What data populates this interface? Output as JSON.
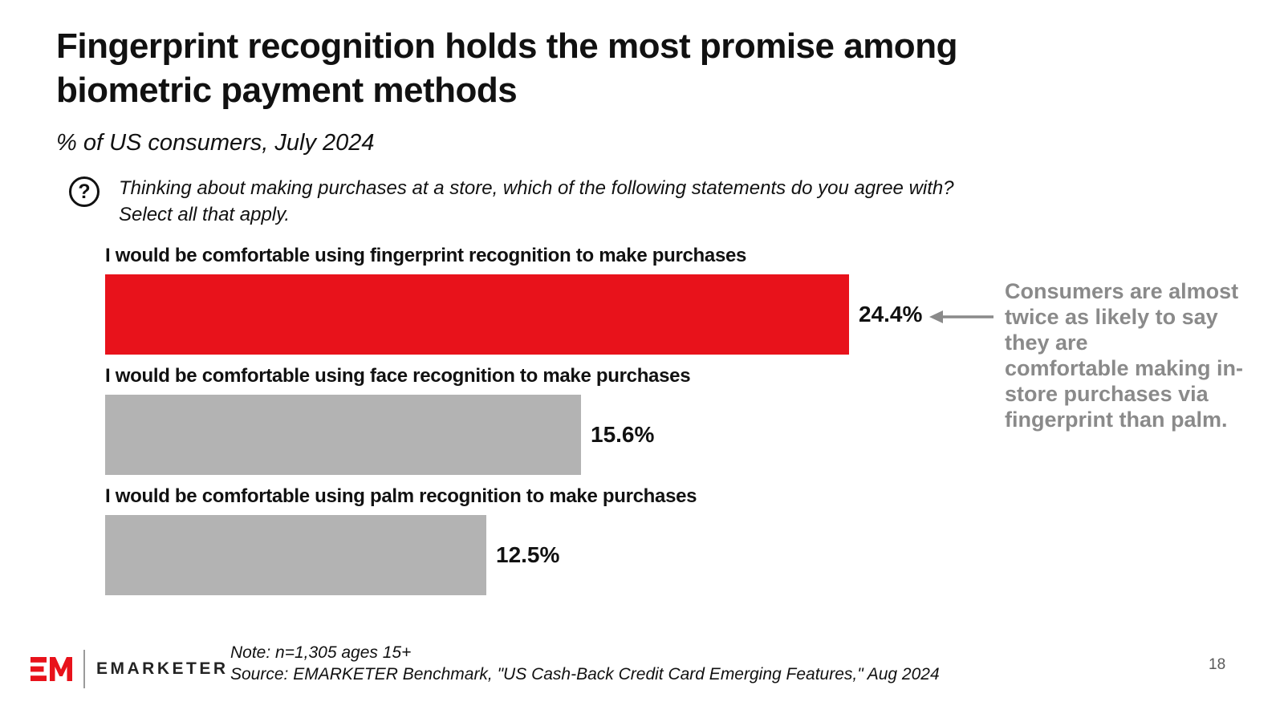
{
  "header": {
    "title": "Fingerprint recognition holds the most promise among biometric payment methods",
    "subtitle": "% of US consumers, July 2024"
  },
  "question": {
    "icon": "circled-question-mark",
    "icon_glyph": "?",
    "lines": [
      "Thinking about making purchases at a store, which of the following statements do you agree with?",
      "Select all that apply."
    ]
  },
  "chart_data": {
    "type": "bar",
    "orientation": "horizontal",
    "title": "Fingerprint recognition holds the most promise among biometric payment methods",
    "subtitle": "% of US consumers, July 2024",
    "categories": [
      "I would be comfortable using fingerprint recognition to make purchases",
      "I would be comfortable using face recognition to make purchases",
      "I would be comfortable using palm recognition to make purchases"
    ],
    "values": [
      24.4,
      15.6,
      12.5
    ],
    "value_labels": [
      "24.4%",
      "15.6%",
      "12.5%"
    ],
    "unit": "%",
    "bar_colors": [
      "#e8121b",
      "#b3b3b3",
      "#b3b3b3"
    ],
    "xlim": [
      0,
      27
    ],
    "grid": false,
    "axes_shown": false,
    "value_label_position": "outside-end"
  },
  "annotation": {
    "lines": [
      "Consumers are almost",
      "twice as likely to say",
      "they are",
      "comfortable making in-",
      "store purchases via",
      "fingerprint than palm."
    ],
    "color": "#8a8a8a",
    "arrow_direction": "left"
  },
  "footer": {
    "logo_mark": "EM",
    "logo_text": "EMARKETER",
    "note": "Note: n=1,305 ages 15+",
    "source": "Source: EMARKETER Benchmark, \"US Cash-Back Credit Card Emerging Features,\" Aug 2024",
    "page_number": "18"
  },
  "colors": {
    "accent_red": "#e8121b",
    "bar_gray": "#b3b3b3",
    "annotation_gray": "#8a8a8a"
  }
}
